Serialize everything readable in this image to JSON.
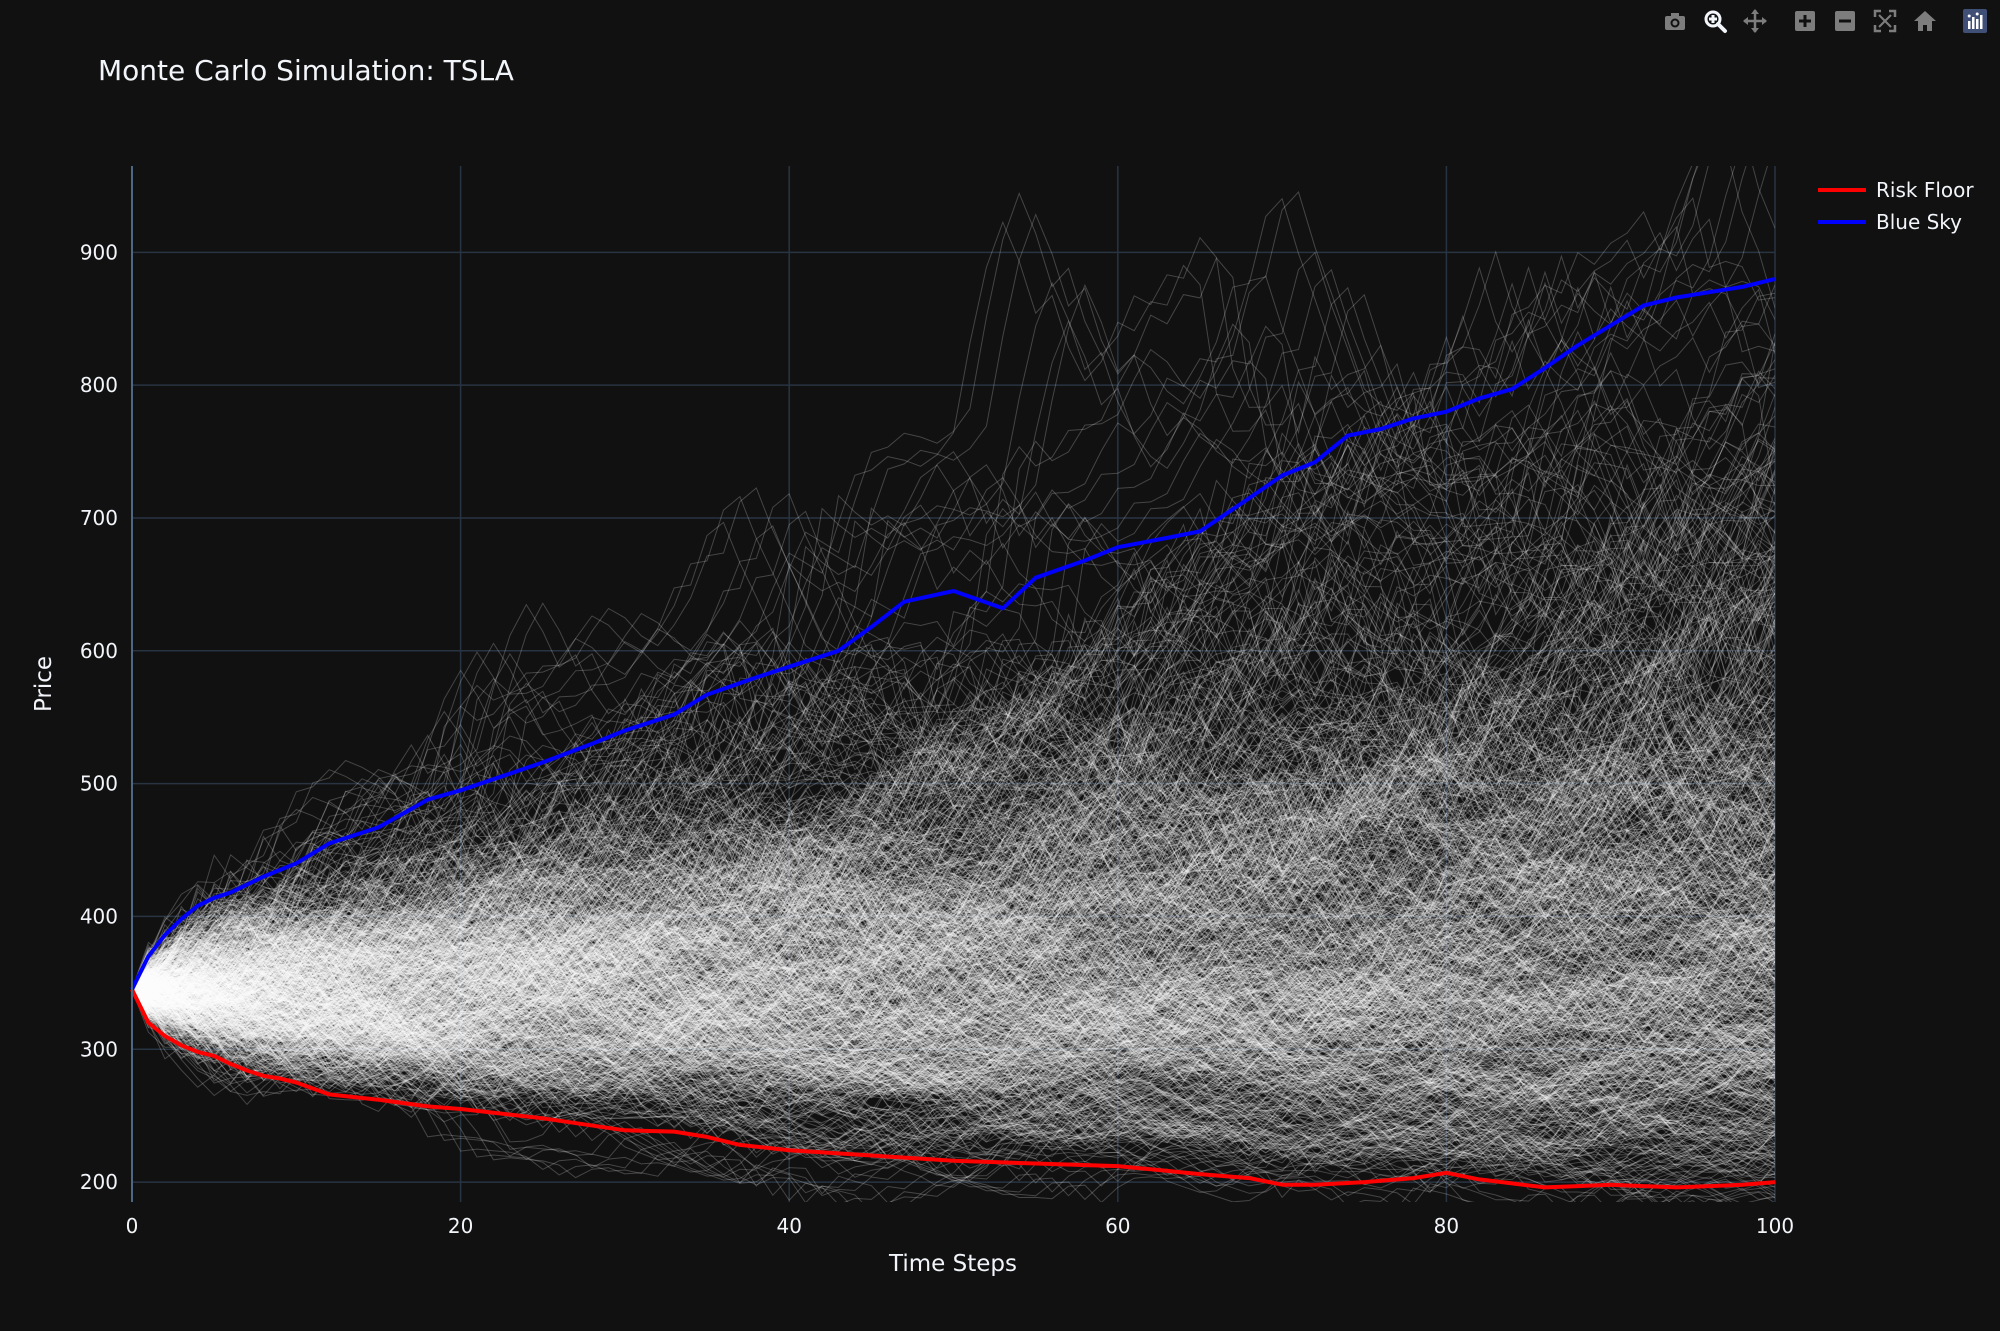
{
  "modebar": {
    "buttons": [
      {
        "name": "camera-icon"
      },
      {
        "name": "zoom-icon"
      },
      {
        "name": "pan-icon"
      },
      {
        "name": "zoom-in-icon"
      },
      {
        "name": "zoom-out-icon"
      },
      {
        "name": "autoscale-icon"
      },
      {
        "name": "home-icon"
      },
      {
        "name": "plotly-logo-icon"
      }
    ],
    "active_color": "#f2f5fa",
    "inactive_color": "#7d7d7d",
    "logo_color": "#3f4f75"
  },
  "chart_data": {
    "type": "line",
    "title": "Monte Carlo Simulation: TSLA",
    "xlabel": "Time Steps",
    "ylabel": "Price",
    "xlim": [
      0,
      100
    ],
    "ylim": [
      185,
      965
    ],
    "x_ticks": [
      0,
      20,
      40,
      60,
      80,
      100
    ],
    "y_ticks": [
      200,
      300,
      400,
      500,
      600,
      700,
      800,
      900
    ],
    "grid": true,
    "background": "#111111",
    "grid_color": "#283442",
    "legend_position": "top-right",
    "start_price": 345,
    "n_simulated_paths": 1000,
    "simulated_path_color": "#ffffff",
    "series": [
      {
        "name": "Risk Floor",
        "color": "#ff0000",
        "x": [
          0,
          1,
          2,
          3,
          4,
          5,
          6,
          7,
          8,
          9,
          10,
          12,
          15,
          18,
          20,
          25,
          30,
          33,
          35,
          37,
          40,
          45,
          50,
          55,
          60,
          65,
          68,
          70,
          72,
          75,
          78,
          80,
          82,
          84,
          86,
          88,
          90,
          92,
          94,
          96,
          98,
          100
        ],
        "values": [
          345,
          320,
          310,
          303,
          298,
          295,
          289,
          284,
          280,
          278,
          275,
          266,
          262,
          257,
          255,
          248,
          239,
          238,
          234,
          228,
          224,
          220,
          216,
          214,
          212,
          206,
          203,
          198,
          198,
          200,
          203,
          207,
          202,
          199,
          196,
          197,
          198,
          197,
          196,
          197,
          198,
          200
        ]
      },
      {
        "name": "Blue Sky",
        "color": "#0000ff",
        "x": [
          0,
          1,
          2,
          3,
          4,
          5,
          6,
          7,
          8,
          10,
          12,
          15,
          18,
          20,
          25,
          28,
          30,
          33,
          35,
          38,
          40,
          43,
          45,
          47,
          50,
          53,
          55,
          58,
          60,
          63,
          65,
          68,
          70,
          72,
          74,
          76,
          78,
          80,
          82,
          84,
          86,
          88,
          90,
          92,
          94,
          96,
          98,
          100
        ],
        "values": [
          345,
          370,
          386,
          398,
          408,
          414,
          418,
          424,
          430,
          440,
          455,
          467,
          488,
          495,
          516,
          530,
          540,
          552,
          567,
          580,
          588,
          600,
          618,
          637,
          645,
          632,
          655,
          668,
          678,
          685,
          690,
          715,
          732,
          742,
          762,
          767,
          775,
          780,
          790,
          797,
          813,
          830,
          845,
          860,
          866,
          870,
          874,
          880
        ]
      }
    ]
  }
}
